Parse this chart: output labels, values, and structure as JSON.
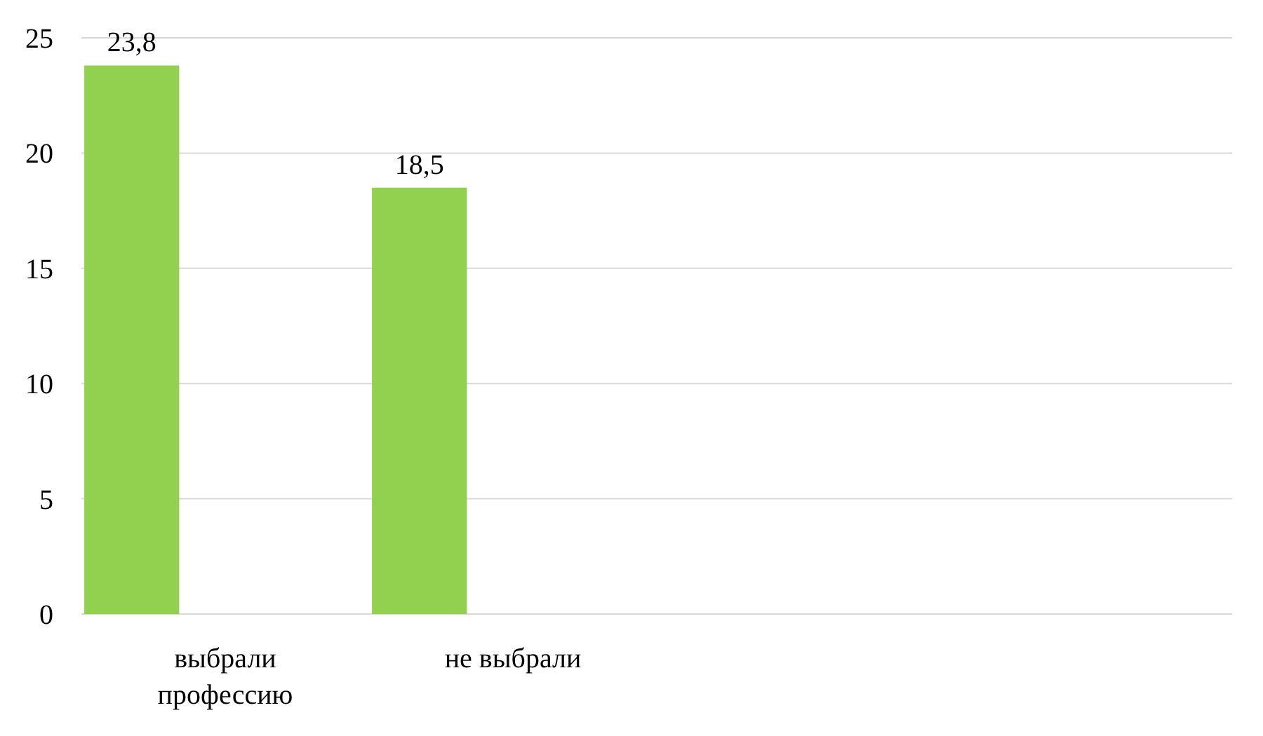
{
  "chart_data": {
    "type": "bar",
    "categories": [
      "выбрали профессию",
      "не выбрали",
      null,
      null
    ],
    "values": [
      23.8,
      18.5,
      null,
      null
    ],
    "value_labels": [
      "23,8",
      "18,5",
      null,
      null
    ],
    "color": "#92d050",
    "ylim": [
      0,
      25
    ],
    "yticks": [
      0,
      5,
      10,
      15,
      20,
      25
    ],
    "grid": "y"
  }
}
